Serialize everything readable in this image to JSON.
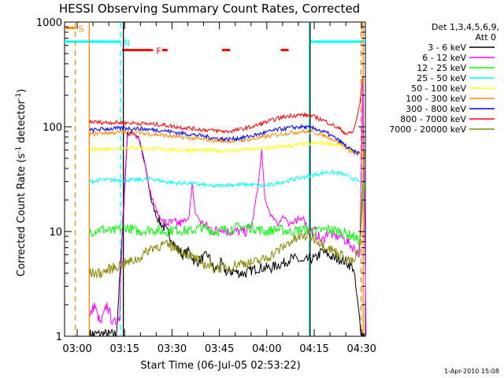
{
  "chart_data": {
    "type": "line",
    "title": "HESSI Observing Summary Count Rates, Corrected",
    "xlabel": "Start Time (06-Jul-05 02:53:22)",
    "ylabel_main": "Corrected Count Rate (s",
    "ylabel_sup1": "-1",
    "ylabel_mid": " detector",
    "ylabel_sup2": "-1",
    "ylabel_end": ")",
    "y_scale": "log",
    "ylim": [
      1,
      1000
    ],
    "xlim_minutes": [
      2.6,
      97.8
    ],
    "x_ticks": [
      {
        "label": "03:00",
        "min": 6.6
      },
      {
        "label": "03:15",
        "min": 21.6
      },
      {
        "label": "03:30",
        "min": 36.6
      },
      {
        "label": "03:45",
        "min": 51.6
      },
      {
        "label": "04:00",
        "min": 66.6
      },
      {
        "label": "04:15",
        "min": 81.6
      },
      {
        "label": "04:30",
        "min": 96.6
      }
    ],
    "y_ticks": [
      {
        "label": "1",
        "value": 1
      },
      {
        "label": "10",
        "value": 10
      },
      {
        "label": "100",
        "value": 100
      },
      {
        "label": "1000",
        "value": 1000
      }
    ],
    "legend": {
      "placement": "right",
      "header1": "Det 1,3,4,5,6,9,",
      "header2": "Att 0"
    },
    "series": [
      {
        "name": "3 - 6 keV",
        "color": "#000000",
        "x": [
          10.5,
          13,
          15,
          17,
          19,
          21,
          22.5,
          24,
          26,
          28,
          30,
          32,
          34,
          36,
          38,
          40,
          42,
          44,
          46,
          48,
          50,
          52,
          54,
          56,
          58,
          60,
          62,
          64,
          66,
          68,
          70,
          72,
          74,
          76,
          78,
          80,
          82,
          84,
          86,
          88,
          90,
          92,
          94,
          96.5,
          98
        ],
        "y": [
          1.05,
          1.05,
          1.05,
          1.05,
          1.05,
          10.5,
          86,
          88,
          80,
          45,
          20,
          13,
          11,
          9,
          7,
          6,
          6.5,
          5,
          5.5,
          6,
          4.2,
          5,
          4,
          4.2,
          4,
          4,
          4.3,
          4.5,
          4.5,
          4.5,
          4.8,
          5,
          5.5,
          5.5,
          5,
          5.5,
          5.5,
          6.5,
          6,
          5.5,
          5.5,
          5,
          4.5,
          1.05,
          1.05
        ]
      },
      {
        "name": "6 - 12 keV",
        "color": "#ff00ff",
        "x": [
          10.5,
          12,
          14,
          16,
          18,
          20,
          21,
          22.5,
          24,
          26,
          28,
          30,
          32,
          34,
          36,
          38,
          40,
          42,
          43,
          44,
          46,
          48,
          50,
          52,
          54,
          56,
          58,
          60,
          62,
          64,
          65,
          66,
          68,
          70,
          72,
          74,
          76,
          78,
          80,
          82,
          84,
          86,
          88,
          90,
          92,
          94,
          96,
          97,
          98
        ],
        "y": [
          1.5,
          2,
          1.3,
          2,
          1.3,
          1.5,
          14,
          82,
          85,
          78,
          45,
          22,
          15,
          12,
          12,
          12,
          12,
          14,
          28,
          15,
          12,
          11,
          10,
          11,
          10,
          10,
          10,
          10,
          12,
          30,
          60,
          20,
          14,
          12,
          14,
          12,
          12,
          14,
          10,
          10,
          8,
          10,
          9,
          9,
          8,
          7,
          6,
          250,
          1.05
        ]
      },
      {
        "name": "12 - 25 keV",
        "color": "#00ff00",
        "x": [
          10.5,
          14,
          18,
          22,
          26,
          30,
          34,
          38,
          42,
          46,
          50,
          54,
          58,
          62,
          66,
          70,
          74,
          78,
          82,
          86,
          90,
          94,
          96,
          97.5
        ],
        "y": [
          10,
          10.5,
          10,
          11,
          10,
          10.5,
          10,
          10.5,
          10,
          11,
          10,
          10.5,
          11,
          11,
          10,
          10.5,
          10,
          10.5,
          10,
          10.5,
          10,
          9,
          8,
          30
        ]
      },
      {
        "name": "25 - 50 keV",
        "color": "#00ffff",
        "x": [
          10.5,
          14,
          18,
          22,
          26,
          30,
          34,
          38,
          42,
          46,
          50,
          54,
          58,
          62,
          66,
          70,
          74,
          78,
          82,
          86,
          90,
          92,
          94,
          96
        ],
        "y": [
          30,
          31,
          31,
          31,
          31,
          32,
          30,
          29,
          29,
          28,
          27,
          28,
          28,
          28,
          27,
          29,
          31,
          33,
          35,
          37,
          36,
          34,
          32,
          30
        ]
      },
      {
        "name": "50 - 100 keV",
        "color": "#ffff00",
        "x": [
          10.5,
          14,
          18,
          22,
          26,
          30,
          34,
          38,
          42,
          46,
          50,
          54,
          58,
          62,
          66,
          70,
          74,
          78,
          82,
          86,
          90,
          92,
          94,
          96
        ],
        "y": [
          60,
          61,
          62,
          63,
          63,
          62,
          61,
          60,
          60,
          60,
          59,
          59,
          60,
          61,
          62,
          64,
          66,
          68,
          70,
          70,
          66,
          63,
          58,
          55
        ]
      },
      {
        "name": "100 - 300 keV",
        "color": "#ff8800",
        "x": [
          10.5,
          14,
          18,
          22,
          26,
          30,
          34,
          38,
          42,
          46,
          50,
          54,
          58,
          62,
          66,
          70,
          74,
          78,
          82,
          86,
          90,
          92,
          94,
          96,
          97.5
        ],
        "y": [
          85,
          87,
          88,
          88,
          87,
          85,
          83,
          80,
          78,
          76,
          74,
          73,
          74,
          76,
          80,
          84,
          88,
          90,
          88,
          80,
          70,
          62,
          56,
          54,
          58
        ]
      },
      {
        "name": "300 - 800 keV",
        "color": "#0000ff",
        "x": [
          10.5,
          14,
          18,
          22,
          26,
          30,
          34,
          38,
          42,
          46,
          50,
          54,
          58,
          62,
          66,
          70,
          74,
          78,
          82,
          86,
          90,
          92,
          94,
          96
        ],
        "y": [
          92,
          95,
          96,
          97,
          96,
          94,
          92,
          88,
          85,
          82,
          78,
          76,
          78,
          82,
          88,
          94,
          98,
          100,
          96,
          86,
          72,
          64,
          58,
          56
        ]
      },
      {
        "name": "800 - 7000 keV",
        "color": "#ff0000",
        "x": [
          10.5,
          14,
          18,
          22,
          26,
          30,
          34,
          38,
          42,
          46,
          50,
          54,
          58,
          62,
          66,
          70,
          74,
          78,
          82,
          86,
          90,
          92,
          94,
          96,
          97
        ],
        "y": [
          112,
          110,
          110,
          109,
          108,
          106,
          104,
          100,
          97,
          94,
          92,
          90,
          94,
          100,
          110,
          120,
          128,
          130,
          124,
          110,
          94,
          85,
          90,
          160,
          300
        ]
      },
      {
        "name": "7000 - 20000 keV",
        "color": "#888800",
        "x": [
          10.5,
          14,
          18,
          22,
          26,
          30,
          34,
          38,
          42,
          46,
          50,
          54,
          58,
          62,
          66,
          70,
          74,
          78,
          80,
          82,
          86,
          90,
          92,
          94,
          96,
          97.5
        ],
        "y": [
          4,
          4,
          4.5,
          5,
          5.5,
          7,
          7.5,
          7,
          6,
          5,
          4.5,
          4.5,
          5,
          5,
          5.5,
          6.5,
          8,
          9,
          9,
          8.5,
          7,
          6,
          5.5,
          5,
          7,
          60
        ]
      }
    ],
    "vertical_lines": [
      {
        "min": 6.0,
        "color": "#ff8800",
        "style": "dashed"
      },
      {
        "min": 10.4,
        "color": "#ff8800",
        "style": "solid"
      },
      {
        "min": 20.3,
        "color": "#00ffff",
        "style": "dashed"
      },
      {
        "min": 21.2,
        "color": "#000000",
        "style": "solid"
      },
      {
        "min": 80.0,
        "color": "#00ffff",
        "style": "solid"
      },
      {
        "min": 80.3,
        "color": "#000000",
        "style": "solid"
      },
      {
        "min": 96.4,
        "color": "#ff8800",
        "style": "dashed"
      },
      {
        "min": 97.1,
        "color": "#ff8800",
        "style": "solid"
      }
    ],
    "flags": [
      {
        "label": "S",
        "color": "#ff8800",
        "y_value": 880,
        "segments": [
          [
            2.6,
            6.0
          ]
        ]
      },
      {
        "label": "N",
        "color": "#00ffff",
        "y_value": 650,
        "segments": [
          [
            2.6,
            20.3
          ],
          [
            80.0,
            97.8
          ]
        ]
      },
      {
        "label": "F",
        "color": "#ff0000",
        "y_value": 540,
        "segments": [
          [
            20.8,
            30.6
          ],
          [
            33.5,
            35.2
          ],
          [
            52.4,
            55.0
          ],
          [
            71.0,
            73.5
          ]
        ]
      }
    ]
  },
  "footer": {
    "date_stamp": "1-Apr-2010 15:08"
  }
}
